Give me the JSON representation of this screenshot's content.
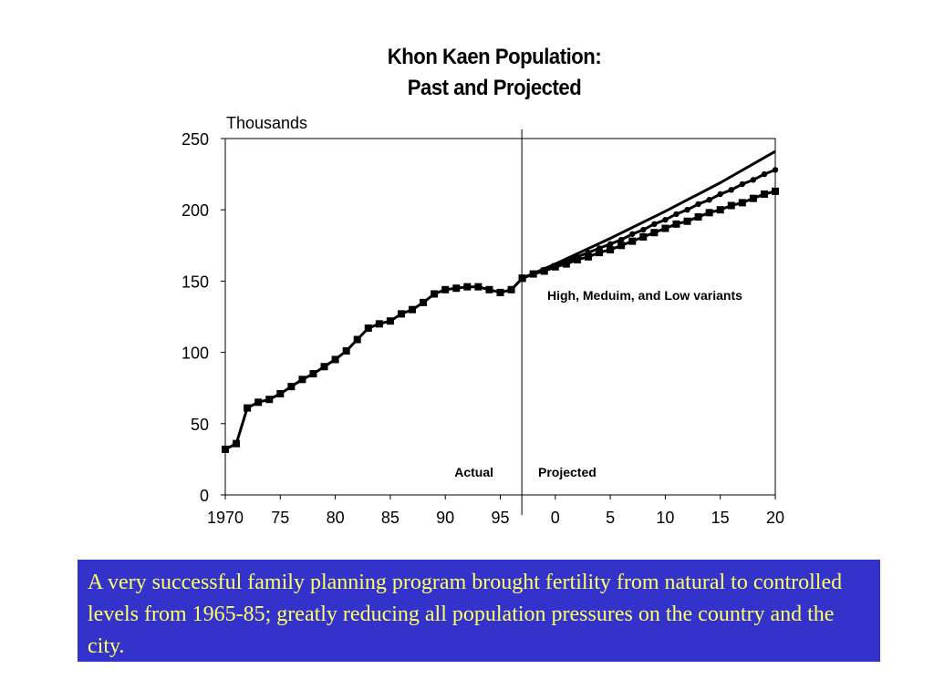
{
  "chart_data": {
    "type": "line",
    "title_lines": [
      "Khon Kaen Population:",
      "Past and Projected"
    ],
    "ylabel": "Thousands",
    "xlabel": "",
    "x_tick_labels": [
      "1970",
      "75",
      "80",
      "85",
      "90",
      "95",
      "0",
      "5",
      "10",
      "15",
      "20"
    ],
    "x_tick_years": [
      1970,
      1975,
      1980,
      1985,
      1990,
      1995,
      2000,
      2005,
      2010,
      2015,
      2020
    ],
    "xlim": [
      1970,
      2020
    ],
    "ylim": [
      0,
      250
    ],
    "y_ticks": [
      0,
      50,
      100,
      150,
      200,
      250
    ],
    "divider_year": 1997,
    "annotations": {
      "actual": "Actual",
      "projected": "Projected",
      "variants": "High, Meduim, and Low variants"
    },
    "grid": false,
    "series": [
      {
        "kind": "actual",
        "marker": "square",
        "x": [
          1970,
          1971,
          1972,
          1973,
          1974,
          1975,
          1976,
          1977,
          1978,
          1979,
          1980,
          1981,
          1982,
          1983,
          1984,
          1985,
          1986,
          1987,
          1988,
          1989,
          1990,
          1991,
          1992,
          1993,
          1994,
          1995,
          1996,
          1997
        ],
        "values": [
          32,
          36,
          61,
          65,
          67,
          71,
          76,
          81,
          85,
          90,
          95,
          101,
          109,
          117,
          120,
          122,
          127,
          130,
          135,
          141,
          144,
          145,
          146,
          146,
          144,
          142,
          144,
          152
        ]
      },
      {
        "kind": "high",
        "marker": "none",
        "x": [
          1997,
          2000,
          2005,
          2010,
          2015,
          2020
        ],
        "values": [
          152,
          162,
          180,
          199,
          219,
          241
        ]
      },
      {
        "kind": "medium",
        "marker": "circle",
        "x": [
          1997,
          1998,
          1999,
          2000,
          2001,
          2002,
          2003,
          2004,
          2005,
          2006,
          2007,
          2008,
          2009,
          2010,
          2011,
          2012,
          2013,
          2014,
          2015,
          2016,
          2017,
          2018,
          2019,
          2020
        ],
        "values": [
          152,
          155,
          158,
          161,
          164,
          167,
          170,
          173,
          176,
          179,
          183,
          186,
          190,
          193,
          197,
          200,
          204,
          207,
          211,
          214,
          218,
          221,
          225,
          228
        ]
      },
      {
        "kind": "low",
        "marker": "square",
        "x": [
          1997,
          1998,
          1999,
          2000,
          2001,
          2002,
          2003,
          2004,
          2005,
          2006,
          2007,
          2008,
          2009,
          2010,
          2011,
          2012,
          2013,
          2014,
          2015,
          2016,
          2017,
          2018,
          2019,
          2020
        ],
        "values": [
          152,
          155,
          157,
          160,
          162,
          165,
          167,
          170,
          172,
          175,
          178,
          181,
          184,
          187,
          190,
          192,
          195,
          198,
          200,
          203,
          205,
          208,
          211,
          213
        ]
      }
    ]
  },
  "caption": "A very successful family planning program brought fertility from natural to controlled levels from 1965-85; greatly reducing all population pressures on the country and the city.",
  "colors": {
    "caption_background": "#3333cc",
    "caption_text": "#ffff66",
    "line": "#000000"
  }
}
